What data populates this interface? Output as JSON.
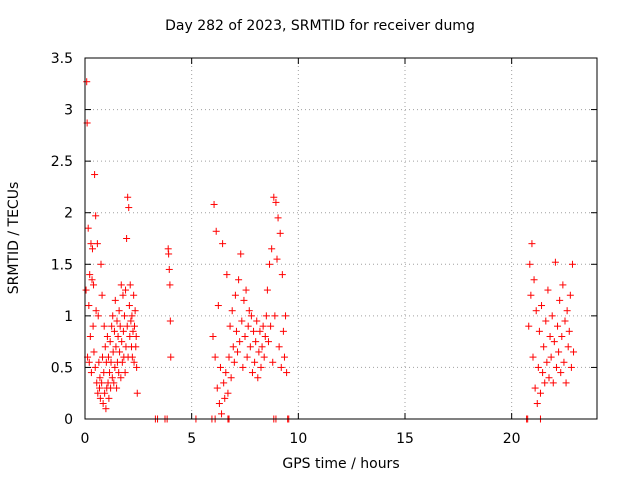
{
  "chart_data": {
    "type": "scatter",
    "title": "Day 282 of 2023, SRMTID for receiver dumg",
    "xlabel": "GPS time / hours",
    "ylabel": "SRMTID / TECUs",
    "xlim": [
      0,
      24
    ],
    "ylim": [
      0,
      3.5
    ],
    "xticks": [
      0,
      5,
      10,
      15,
      20
    ],
    "yticks": [
      0,
      0.5,
      1,
      1.5,
      2,
      2.5,
      3,
      3.5
    ],
    "grid": true,
    "marker": "+",
    "color": "#ff0000",
    "series": [
      {
        "x": [
          0.05,
          0.08,
          0.1,
          0.12,
          0.15,
          0.18,
          0.2,
          0.22,
          0.25,
          0.28,
          0.3,
          0.33,
          0.35,
          0.38,
          0.4,
          0.42,
          0.45,
          0.48,
          0.5,
          0.52,
          0.55,
          0.58,
          0.6,
          0.62,
          0.65,
          0.68,
          0.7,
          0.72,
          0.75,
          0.78,
          0.8,
          0.82,
          0.85,
          0.88,
          0.9,
          0.92,
          0.95,
          0.98,
          1.0,
          1.02,
          1.05,
          1.08,
          1.1,
          1.12,
          1.15,
          1.18,
          1.2,
          1.22,
          1.25,
          1.28,
          1.3,
          1.32,
          1.35,
          1.38,
          1.4,
          1.42,
          1.45,
          1.48,
          1.5,
          1.52,
          1.55,
          1.58,
          1.6,
          1.62,
          1.65,
          1.68,
          1.7,
          1.72,
          1.75,
          1.78,
          1.8,
          1.82,
          1.85,
          1.88,
          1.9,
          1.92,
          1.95,
          1.98,
          2.0,
          2.02,
          2.05,
          2.08,
          2.1,
          2.12,
          2.15,
          2.18,
          2.2,
          2.22,
          2.25,
          2.28,
          2.3,
          2.32,
          2.35,
          2.38,
          2.4,
          2.42,
          2.45
        ],
        "y": [
          1.25,
          3.27,
          2.87,
          0.6,
          1.85,
          1.1,
          0.55,
          1.4,
          0.8,
          1.7,
          0.45,
          1.35,
          1.65,
          0.9,
          1.3,
          0.65,
          2.37,
          0.5,
          1.97,
          1.05,
          0.35,
          1.7,
          0.25,
          1.0,
          0.55,
          0.3,
          0.4,
          0.2,
          1.5,
          0.35,
          1.2,
          0.6,
          0.15,
          0.45,
          0.9,
          0.25,
          0.7,
          0.1,
          0.55,
          0.3,
          0.8,
          0.35,
          0.6,
          0.2,
          0.45,
          0.75,
          0.3,
          0.55,
          0.9,
          0.4,
          1.0,
          0.65,
          0.35,
          0.85,
          0.5,
          1.15,
          0.7,
          0.3,
          0.95,
          0.55,
          0.8,
          0.45,
          1.05,
          0.65,
          0.9,
          0.4,
          1.3,
          0.75,
          0.55,
          1.2,
          0.85,
          0.6,
          1.0,
          0.45,
          1.25,
          0.7,
          1.75,
          0.9,
          2.15,
          0.6,
          2.05,
          1.1,
          0.8,
          1.3,
          0.95,
          0.7,
          1.0,
          0.6,
          0.85,
          1.2,
          0.55,
          0.9,
          1.05,
          0.7,
          0.8,
          0.5,
          0.25
        ]
      },
      {
        "x": [
          3.9,
          3.92,
          3.95,
          3.98,
          4.0,
          4.02
        ],
        "y": [
          1.65,
          1.6,
          1.45,
          1.3,
          0.95,
          0.6
        ]
      },
      {
        "x": [
          6.0,
          6.05,
          6.1,
          6.15,
          6.2,
          6.25,
          6.3,
          6.35,
          6.4,
          6.45,
          6.5,
          6.55,
          6.6,
          6.65,
          6.7,
          6.75,
          6.8,
          6.85,
          6.9,
          6.95,
          7.0,
          7.05,
          7.1,
          7.15,
          7.2,
          7.25,
          7.3,
          7.35,
          7.4,
          7.45,
          7.5,
          7.55,
          7.6,
          7.65,
          7.7,
          7.75,
          7.8,
          7.85,
          7.9,
          7.95,
          8.0,
          8.05,
          8.1,
          8.15,
          8.2,
          8.25,
          8.3,
          8.35,
          8.4,
          8.45,
          8.5,
          8.55,
          8.6,
          8.65,
          8.7,
          8.75,
          8.8,
          8.85,
          8.9,
          8.95,
          9.0,
          9.05,
          9.1,
          9.15,
          9.2,
          9.25,
          9.3,
          9.35,
          9.4,
          9.45
        ],
        "y": [
          0.8,
          2.08,
          0.6,
          1.82,
          0.3,
          1.1,
          0.15,
          0.5,
          0.05,
          1.7,
          0.35,
          0.2,
          0.45,
          1.4,
          0.25,
          0.6,
          0.9,
          0.4,
          1.05,
          0.7,
          0.55,
          1.2,
          0.85,
          0.65,
          1.35,
          0.75,
          1.6,
          0.95,
          0.5,
          1.15,
          0.8,
          1.25,
          0.6,
          0.9,
          1.05,
          0.7,
          1.0,
          0.45,
          0.85,
          0.55,
          0.75,
          0.95,
          0.4,
          0.65,
          0.85,
          0.5,
          0.7,
          0.9,
          0.6,
          0.8,
          1.0,
          1.25,
          0.75,
          1.5,
          0.9,
          1.65,
          0.55,
          2.15,
          1.0,
          2.1,
          1.55,
          1.95,
          0.7,
          1.8,
          0.5,
          1.4,
          0.85,
          0.6,
          1.0,
          0.45
        ]
      },
      {
        "x": [
          20.8,
          20.85,
          20.9,
          20.95,
          21.0,
          21.05,
          21.1,
          21.15,
          21.2,
          21.25,
          21.3,
          21.35,
          21.4,
          21.45,
          21.5,
          21.55,
          21.6,
          21.65,
          21.7,
          21.75,
          21.8,
          21.85,
          21.9,
          21.95,
          22.0,
          22.05,
          22.1,
          22.15,
          22.2,
          22.25,
          22.3,
          22.35,
          22.4,
          22.45,
          22.5,
          22.55,
          22.6,
          22.65,
          22.7,
          22.75,
          22.8,
          22.85,
          22.9
        ],
        "y": [
          0.9,
          1.5,
          1.2,
          1.7,
          0.6,
          1.35,
          0.3,
          1.05,
          0.15,
          0.5,
          0.85,
          0.25,
          1.1,
          0.45,
          0.7,
          0.35,
          0.95,
          0.55,
          1.25,
          0.4,
          0.8,
          0.6,
          1.0,
          0.35,
          0.75,
          1.52,
          0.5,
          0.9,
          0.65,
          1.15,
          0.45,
          0.8,
          1.3,
          0.55,
          0.95,
          0.35,
          1.05,
          0.7,
          0.85,
          1.2,
          0.5,
          1.5,
          0.65
        ]
      },
      {
        "x": [
          3.3,
          3.4,
          3.75,
          3.85,
          5.2,
          5.95,
          6.1,
          6.7,
          6.75,
          8.85,
          8.95,
          9.5,
          9.55,
          20.7,
          20.75,
          21.35
        ],
        "y": [
          0,
          0,
          0,
          0,
          0,
          0,
          0,
          0,
          0,
          0,
          0,
          0,
          0,
          0,
          0,
          0
        ]
      }
    ]
  }
}
